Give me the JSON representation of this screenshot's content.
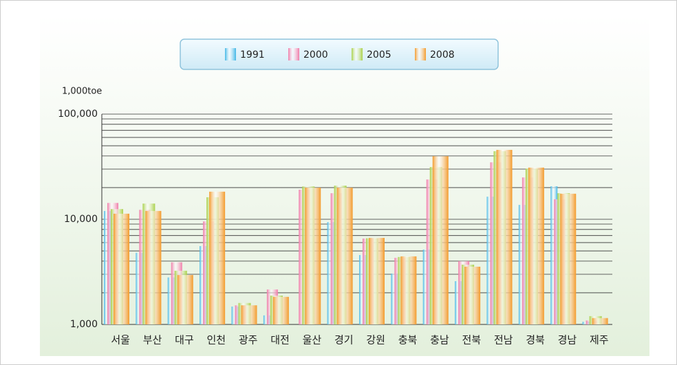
{
  "chart_data": {
    "type": "bar",
    "y_label": "1,000toe",
    "log_scale": true,
    "legend": "top",
    "categories": [
      "서울",
      "부산",
      "대구",
      "인천",
      "광주",
      "대전",
      "울산",
      "경기",
      "강원",
      "충북",
      "충남",
      "전북",
      "전남",
      "경북",
      "경남",
      "제주"
    ],
    "series": [
      {
        "name": "1991",
        "color": "#3fb6e6",
        "values": [
          12000,
          4800,
          2800,
          5560,
          1480,
          1220,
          null,
          9400,
          4570,
          3050,
          5150,
          2580,
          16400,
          13700,
          20600,
          1060
        ]
      },
      {
        "name": "2000",
        "color": "#f07aa8",
        "values": [
          14300,
          12300,
          3900,
          9550,
          1520,
          2150,
          19100,
          17700,
          6560,
          4300,
          23900,
          4000,
          34800,
          25000,
          15500,
          1090
        ]
      },
      {
        "name": "2005",
        "color": "#a9d14a",
        "values": [
          12500,
          14100,
          3240,
          16200,
          1600,
          1880,
          20500,
          20900,
          6600,
          4380,
          31400,
          3700,
          44400,
          30300,
          17700,
          1200
        ]
      },
      {
        "name": "2008",
        "color": "#f39a2b",
        "values": [
          11300,
          12000,
          2950,
          18300,
          1520,
          1830,
          20000,
          20000,
          6650,
          4440,
          39800,
          3540,
          45700,
          31000,
          17500,
          1150
        ]
      }
    ],
    "ylim": [
      1000,
      100000
    ],
    "yticks": [
      {
        "value": 1000,
        "label": "1,000"
      },
      {
        "value": 10000,
        "label": "10,000"
      },
      {
        "value": 100000,
        "label": "100,000"
      }
    ],
    "minor_yticks": [
      2000,
      3000,
      4000,
      5000,
      6000,
      7000,
      8000,
      9000,
      20000,
      30000,
      40000,
      50000,
      60000,
      70000,
      80000,
      90000
    ],
    "grid": true
  }
}
